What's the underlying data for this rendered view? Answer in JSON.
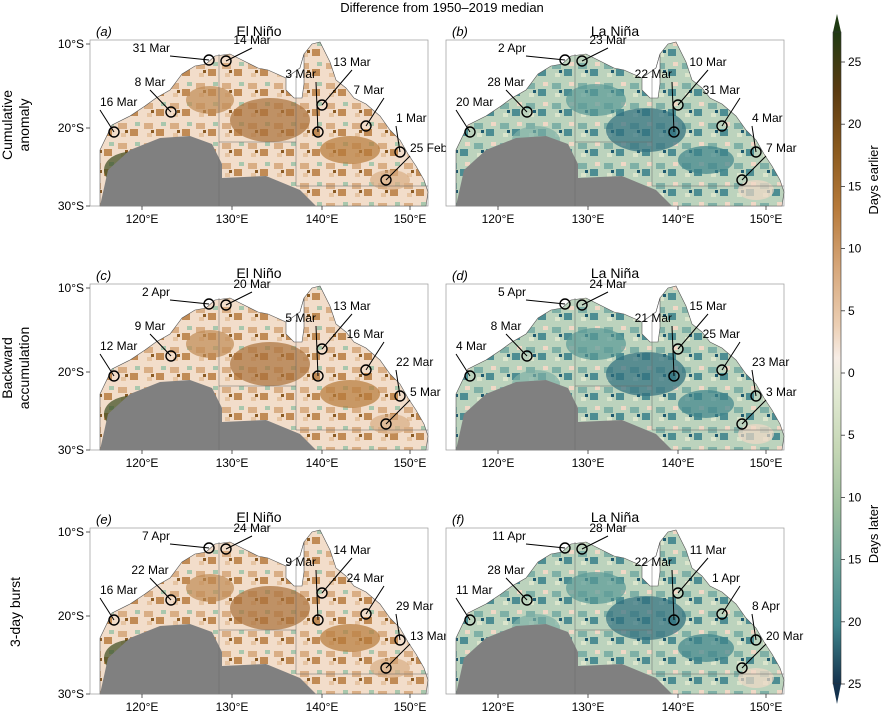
{
  "figure": {
    "title": "Difference from 1950–2019 median",
    "columns": [
      "El Niño",
      "La Niña"
    ],
    "rows": [
      {
        "label_lines": [
          "Cumulative",
          "anomaly"
        ]
      },
      {
        "label_lines": [
          "Backward",
          "accumulation"
        ]
      },
      {
        "label_lines": [
          "3-day burst"
        ]
      }
    ],
    "x_ticks": [
      "120°E",
      "130°E",
      "140°E",
      "150°E"
    ],
    "y_ticks": [
      "10°S",
      "20°S",
      "30°S"
    ],
    "colorbar": {
      "top_label": "Days earlier",
      "bottom_label": "Days later",
      "ticks": [
        "25",
        "20",
        "15",
        "10",
        "5",
        "0",
        "5",
        "10",
        "15",
        "20",
        "25"
      ],
      "colors_earlier": [
        "#1f3a12",
        "#5a3a10",
        "#8a5a1e",
        "#b77a3a",
        "#d6a679",
        "#eccfb4",
        "#f7e8de"
      ],
      "colors_later": [
        "#e3ead4",
        "#c5d7b5",
        "#9dbf9e",
        "#6ba59b",
        "#3f858c",
        "#1d5f74",
        "#14324d"
      ],
      "land_color": "#808080"
    }
  },
  "panels": [
    {
      "id": "(a)",
      "column": "El Niño",
      "row": "Cumulative anomaly",
      "labels": [
        "31 Mar",
        "14 Mar",
        "13 Mar",
        "8 Mar",
        "3 Mar",
        "7 Mar",
        "16 Mar",
        "1 Mar",
        "25 Feb"
      ]
    },
    {
      "id": "(b)",
      "column": "La Niña",
      "row": "Cumulative anomaly",
      "labels": [
        "2 Apr",
        "23 Mar",
        "10 Mar",
        "28 Mar",
        "22 Mar",
        "31 Mar",
        "20 Mar",
        "4 Mar",
        "7 Mar"
      ]
    },
    {
      "id": "(c)",
      "column": "El Niño",
      "row": "Backward accumulation",
      "labels": [
        "2 Apr",
        "20 Mar",
        "13 Mar",
        "9 Mar",
        "5 Mar",
        "16 Mar",
        "12 Mar",
        "22 Mar",
        "5 Mar"
      ]
    },
    {
      "id": "(d)",
      "column": "La Niña",
      "row": "Backward accumulation",
      "labels": [
        "5 Apr",
        "24 Mar",
        "15 Mar",
        "8 Mar",
        "21 Mar",
        "25 Mar",
        "4 Mar",
        "23 Mar",
        "3 Mar"
      ]
    },
    {
      "id": "(e)",
      "column": "El Niño",
      "row": "3-day burst",
      "labels": [
        "7 Apr",
        "24 Mar",
        "14 Mar",
        "22 Mar",
        "9 Mar",
        "24 Mar",
        "16 Mar",
        "29 Mar",
        "13 Mar"
      ]
    },
    {
      "id": "(f)",
      "column": "La Niña",
      "row": "3-day burst",
      "labels": [
        "11 Apr",
        "28 Mar",
        "11 Mar",
        "28 Mar",
        "22 Mar",
        "1 Apr",
        "11 Mar",
        "8 Apr",
        "20 Mar"
      ]
    }
  ]
}
